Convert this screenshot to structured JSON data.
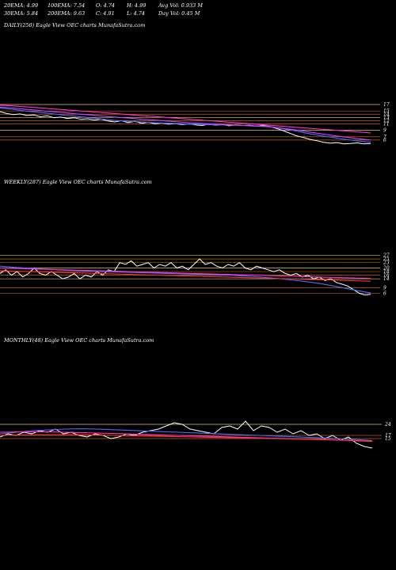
{
  "header": {
    "row1": [
      {
        "name": "ema20",
        "text": "20EMA: 4.99"
      },
      {
        "name": "ema100",
        "text": "100EMA: 7.54"
      },
      {
        "name": "open",
        "text": "O: 4.74"
      },
      {
        "name": "high",
        "text": "H: 4.99"
      },
      {
        "name": "avgvol",
        "text": "Avg Vol: 0.933 M"
      }
    ],
    "row2": [
      {
        "name": "ema30",
        "text": "30EMA: 5.84"
      },
      {
        "name": "ema200",
        "text": "200EMA: 9.63"
      },
      {
        "name": "close",
        "text": "C: 4.91"
      },
      {
        "name": "low",
        "text": "L: 4.74"
      },
      {
        "name": "dayvol",
        "text": "Day Vol: 0.45 M"
      }
    ]
  },
  "colors": {
    "price": "#ffffff",
    "ema_blue": "#4a6cff",
    "ema_pink": "#ff33cc",
    "ema_magenta": "#cc44ff",
    "ema_red": "#ff3333",
    "level": "#b8621a",
    "level_light": "#e0c080"
  },
  "chart_data": [
    {
      "type": "line",
      "label": "DAILY(250) Eagle   View  OEC charts MunafaSutra.com",
      "ticks": [
        "17",
        "15",
        "14",
        "13",
        "12",
        "11",
        "9",
        "7",
        "6"
      ],
      "level_lines": [
        17,
        15,
        14,
        13,
        12,
        11,
        9,
        7,
        6
      ],
      "ylim": [
        4,
        17.5
      ],
      "series": [
        {
          "role": "price",
          "values": [
            14.8,
            14.2,
            13.9,
            14.1,
            13.6,
            13.8,
            13.2,
            13.5,
            12.9,
            13.1,
            12.7,
            12.9,
            12.4,
            12.6,
            12.2,
            12.5,
            11.9,
            11.6,
            12.0,
            11.4,
            11.8,
            11.2,
            11.5,
            11.0,
            11.3,
            10.9,
            11.1,
            10.8,
            11.0,
            10.7,
            10.5,
            10.9,
            10.6,
            10.8,
            10.4,
            10.7,
            10.5,
            10.6,
            10.3,
            10.5,
            10.2,
            9.6,
            8.9,
            8.1,
            7.3,
            6.8,
            6.2,
            5.8,
            5.3,
            5.0,
            5.2,
            4.8,
            4.9,
            5.1,
            4.8,
            4.9
          ]
        },
        {
          "role": "ema_pink",
          "values": [
            16.8,
            16.6,
            16.3,
            16.0,
            15.7,
            15.4,
            15.1,
            14.8,
            14.5,
            14.2,
            13.9,
            13.6,
            13.3,
            13.0,
            12.7,
            12.4,
            12.1,
            11.8,
            11.5,
            11.2,
            10.9,
            10.6,
            10.3,
            10.0,
            9.7,
            9.4,
            9.1,
            8.8,
            8.5,
            8.2
          ]
        },
        {
          "role": "ema_blue",
          "values": [
            15.9,
            15.5,
            15.0,
            14.6,
            14.2,
            13.7,
            13.3,
            12.9,
            12.5,
            12.1,
            11.8,
            11.6,
            11.4,
            11.2,
            11.1,
            10.9,
            10.8,
            10.7,
            10.6,
            10.5,
            10.4,
            10.2,
            9.6,
            8.9,
            8.1,
            7.4,
            6.8,
            6.2,
            5.7,
            5.3
          ]
        },
        {
          "role": "ema_magenta",
          "values": [
            16.2,
            15.9,
            15.5,
            15.2,
            14.8,
            14.5,
            14.1,
            13.8,
            13.4,
            13.1,
            12.8,
            12.5,
            12.2,
            11.9,
            11.6,
            11.3,
            11.1,
            10.9,
            10.7,
            10.5,
            10.3,
            10.1,
            9.7,
            9.2,
            8.6,
            8.0,
            7.4,
            6.9,
            6.4,
            6.0
          ]
        }
      ]
    },
    {
      "type": "line",
      "label": "WEEKLY(287) Eagle   View  OEC charts MunafaSutra.com",
      "ticks": [
        "27",
        "25",
        "23",
        "20",
        "18",
        "16",
        "14",
        "9",
        "6"
      ],
      "level_lines": [
        27,
        25,
        23,
        20,
        18,
        16,
        14,
        9,
        6
      ],
      "ylim": [
        4,
        29
      ],
      "series": [
        {
          "role": "price",
          "values": [
            17,
            19,
            16,
            18,
            15,
            17,
            20,
            17,
            16,
            18,
            16,
            14,
            15,
            17,
            14,
            16,
            15,
            18,
            16,
            19,
            18,
            23,
            22,
            24,
            21,
            22,
            23,
            20,
            22,
            21,
            23,
            20,
            21,
            19,
            22,
            25,
            22,
            23,
            21,
            20,
            22,
            21,
            23,
            20,
            19,
            21,
            20,
            19,
            18,
            19,
            17,
            16,
            17,
            15,
            16,
            14,
            15,
            13,
            14,
            12,
            11,
            10,
            8,
            6,
            5,
            5.5
          ]
        },
        {
          "role": "ema_blue",
          "values": [
            21,
            20.5,
            20,
            19.6,
            19.2,
            18.8,
            18.5,
            18.2,
            18,
            17.8,
            17.6,
            17.4,
            17.2,
            17,
            16.8,
            16.6,
            16.4,
            16.2,
            16,
            15.6,
            15.2,
            14.6,
            14,
            13.2,
            12.4,
            11.4,
            10.2,
            8.8,
            7.4,
            6.2
          ]
        },
        {
          "role": "ema_pink",
          "values": [
            20,
            19.8,
            19.6,
            19.4,
            19.2,
            19.0,
            18.8,
            18.6,
            18.4,
            18.2,
            18.0,
            17.8,
            17.6,
            17.4,
            17.2,
            17.0,
            16.8,
            16.6,
            16.4,
            16.2,
            16.0,
            15.8,
            15.6,
            15.4,
            15.2,
            15.0,
            14.8,
            14.6,
            14.4,
            14.2
          ]
        },
        {
          "role": "ema_red",
          "values": [
            18.5,
            18.3,
            18.1,
            17.9,
            17.7,
            17.5,
            17.3,
            17.1,
            16.9,
            16.7,
            16.5,
            16.3,
            16.1,
            15.9,
            15.7,
            15.5,
            15.3,
            15.1,
            14.9,
            14.7,
            14.5,
            14.3,
            14.1,
            13.9,
            13.7,
            13.5,
            13.3,
            13.1,
            12.9,
            12.7
          ]
        }
      ]
    },
    {
      "type": "line",
      "label": "MONTHLY(48) Eagle   View  OEC charts MunafaSutra.com",
      "ticks": [
        "24",
        "17",
        "15"
      ],
      "level_lines": [
        24,
        17,
        15
      ],
      "ylim": [
        3,
        32
      ],
      "series": [
        {
          "role": "price",
          "values": [
            16,
            18,
            17,
            19,
            18,
            20,
            19,
            21,
            18,
            19,
            17,
            16,
            18,
            17,
            15,
            16,
            18,
            17,
            19,
            20,
            21,
            23,
            25,
            24,
            21,
            20,
            19,
            18,
            22,
            23,
            21,
            26,
            20,
            23,
            22,
            19,
            21,
            18,
            20,
            17,
            18,
            15,
            17,
            14,
            16,
            12,
            10,
            9
          ]
        },
        {
          "role": "ema_blue",
          "values": [
            18,
            19,
            20,
            20.5,
            21,
            21.2,
            21,
            20.6,
            20.2,
            19.8,
            19.4,
            19,
            18.6,
            18.2,
            17.8,
            17.4,
            17,
            16.6,
            16.2,
            15.8,
            15.4,
            15,
            14.4,
            13.8
          ]
        },
        {
          "role": "ema_pink",
          "values": [
            19,
            19.2,
            19.3,
            19.2,
            19,
            18.8,
            18.5,
            18.2,
            17.9,
            17.6,
            17.3,
            17,
            16.7,
            16.4,
            16.1,
            15.8,
            15.5,
            15.2,
            14.9,
            14.6,
            14.3,
            14,
            13.6,
            13.2
          ]
        },
        {
          "role": "ema_red",
          "values": [
            17,
            17.2,
            17.4,
            17.5,
            17.5,
            17.4,
            17.2,
            17,
            16.8,
            16.6,
            16.4,
            16.2,
            16,
            15.8,
            15.6,
            15.4,
            15.2,
            15,
            14.8,
            14.6,
            14.4,
            14.1,
            13.8,
            13.4
          ]
        }
      ]
    }
  ]
}
